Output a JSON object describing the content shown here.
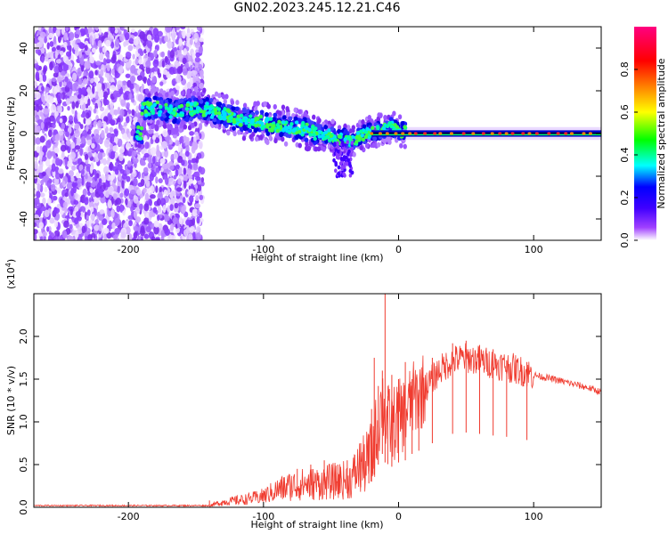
{
  "title": "GN02.2023.245.12.21.C46",
  "chart_data": [
    {
      "type": "heatmap",
      "xlabel": "Height of straight line (km)",
      "ylabel": "Frequency (Hz)",
      "xlim": [
        -270,
        150
      ],
      "ylim": [
        -50,
        50
      ],
      "xticks": [
        -200,
        -100,
        0,
        100
      ],
      "yticks": [
        -40,
        -20,
        0,
        20,
        40
      ],
      "colorbar": {
        "label": "Normalized spectral amplitude",
        "range": [
          0.0,
          1.0
        ],
        "ticks": [
          "0.0",
          "0.2",
          "0.4",
          "0.6",
          "0.8"
        ],
        "colors": [
          "#ffffff",
          "#8000ff",
          "#0000ff",
          "#00ffff",
          "#00ff00",
          "#ffff00",
          "#ff8000",
          "#ff0000",
          "#ff0080"
        ]
      },
      "features": {
        "noise_region_x": [
          -270,
          -145
        ],
        "trail_points": [
          [
            -190,
            11
          ],
          [
            -180,
            12
          ],
          [
            -165,
            10
          ],
          [
            -150,
            12
          ],
          [
            -140,
            11
          ],
          [
            -130,
            9
          ],
          [
            -120,
            7
          ],
          [
            -110,
            6
          ],
          [
            -100,
            5
          ],
          [
            -90,
            4
          ],
          [
            -80,
            3
          ],
          [
            -70,
            2
          ],
          [
            -60,
            0
          ],
          [
            -50,
            -1
          ],
          [
            -45,
            -3
          ],
          [
            -40,
            -2
          ],
          [
            -35,
            -4
          ],
          [
            -30,
            -2
          ],
          [
            -20,
            1
          ],
          [
            -10,
            2
          ],
          [
            -5,
            3
          ],
          [
            0,
            1
          ],
          [
            20,
            0
          ],
          [
            50,
            0
          ],
          [
            100,
            0
          ],
          [
            150,
            0
          ]
        ],
        "stable_line_y": 0
      }
    },
    {
      "type": "line",
      "xlabel": "Height of straight line (km)",
      "ylabel": "SNR (10 * v/v)",
      "exponent_label": "(x10",
      "exponent_power": "4",
      "exponent_close": ")",
      "xlim": [
        -270,
        150
      ],
      "ylim": [
        0,
        2.5
      ],
      "xticks": [
        -200,
        -100,
        0,
        100
      ],
      "yticks": [
        "0.0",
        "0.5",
        "1.0",
        "1.5",
        "2.0"
      ],
      "series": [
        {
          "color": "#f03c30",
          "points": [
            [
              -270,
              0.02
            ],
            [
              -200,
              0.02
            ],
            [
              -140,
              0.02
            ],
            [
              -130,
              0.06
            ],
            [
              -120,
              0.08
            ],
            [
              -110,
              0.1
            ],
            [
              -100,
              0.13
            ],
            [
              -90,
              0.2
            ],
            [
              -80,
              0.25
            ],
            [
              -70,
              0.27
            ],
            [
              -60,
              0.28
            ],
            [
              -50,
              0.3
            ],
            [
              -40,
              0.32
            ],
            [
              -35,
              0.33
            ],
            [
              -30,
              0.45
            ],
            [
              -25,
              0.5
            ],
            [
              -20,
              0.6
            ],
            [
              -15,
              1.0
            ],
            [
              -12,
              1.25
            ],
            [
              -10,
              1.05
            ],
            [
              -5,
              0.95
            ],
            [
              0,
              1.05
            ],
            [
              5,
              1.1
            ],
            [
              10,
              1.25
            ],
            [
              20,
              1.4
            ],
            [
              30,
              1.6
            ],
            [
              40,
              1.72
            ],
            [
              50,
              1.75
            ],
            [
              60,
              1.72
            ],
            [
              70,
              1.68
            ],
            [
              80,
              1.65
            ],
            [
              90,
              1.6
            ],
            [
              100,
              1.55
            ],
            [
              120,
              1.48
            ],
            [
              140,
              1.4
            ],
            [
              150,
              1.35
            ]
          ],
          "spikes": [
            [
              -140,
              0.08
            ],
            [
              -120,
              0.12
            ],
            [
              -100,
              0.2
            ],
            [
              -85,
              0.35
            ],
            [
              -75,
              0.45
            ],
            [
              -65,
              0.5
            ],
            [
              -55,
              0.55
            ],
            [
              -45,
              0.5
            ],
            [
              -38,
              0.55
            ],
            [
              -28,
              0.75
            ],
            [
              -22,
              0.85
            ],
            [
              -20,
              1.15
            ],
            [
              -18,
              1.75
            ],
            [
              -15,
              1.42
            ],
            [
              -12,
              1.6
            ],
            [
              -10,
              2.5
            ],
            [
              -8,
              1.3
            ],
            [
              -5,
              1.55
            ],
            [
              0,
              1.5
            ],
            [
              5,
              1.7
            ],
            [
              10,
              1.5
            ],
            [
              15,
              1.3
            ],
            [
              25,
              1.75
            ],
            [
              40,
              1.92
            ],
            [
              50,
              1.95
            ],
            [
              60,
              1.9
            ],
            [
              70,
              1.85
            ],
            [
              80,
              1.72
            ],
            [
              95,
              1.7
            ]
          ]
        }
      ]
    }
  ]
}
